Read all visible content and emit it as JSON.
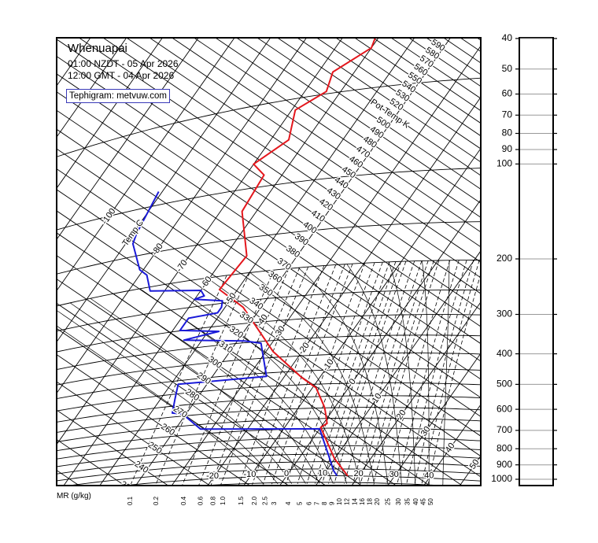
{
  "station": {
    "name": "Whenuapai",
    "local_time": "01:00 NZDT - 05 Apr 2026",
    "gmt_time": "12:00 GMT - 04 Apr 2026",
    "credit": "Tephigram: metvuw.com"
  },
  "chart_data": {
    "type": "line",
    "diagram": "tephigram",
    "pressure_axis": {
      "scale": "log",
      "range": [
        40,
        1000
      ],
      "ticks": [
        40,
        50,
        60,
        70,
        80,
        90,
        100,
        200,
        300,
        400,
        500,
        600,
        700,
        800,
        900,
        1000
      ]
    },
    "isotherm_labels": {
      "axis_label": "Temp C",
      "values": [
        -100,
        -80,
        -70,
        -60,
        -50,
        -40,
        -30,
        -20,
        -10,
        0,
        10,
        20,
        30,
        40,
        50
      ]
    },
    "surface_isotherm_labels": [
      -20,
      -10,
      0,
      10,
      20,
      30,
      40
    ],
    "potential_temperature_labels": {
      "axis_label": "Pot Temp K",
      "values": [
        230,
        240,
        250,
        260,
        270,
        280,
        290,
        300,
        310,
        320,
        330,
        340,
        350,
        360,
        370,
        380,
        390,
        400,
        410,
        420,
        430,
        440,
        450,
        460,
        470,
        480,
        490,
        500,
        520,
        530,
        540,
        550,
        560,
        570,
        580,
        590
      ]
    },
    "mixing_ratio": {
      "axis_label": "MR (g/kg)",
      "values": [
        "0.1",
        "0.2",
        "0.4",
        "0.6",
        "0.8",
        "1.0",
        "1.5",
        "2.0",
        "2.5",
        "3",
        "4",
        "5",
        "6",
        "7",
        "8",
        "9",
        "10",
        "12",
        "14",
        "16",
        "18",
        "20",
        "25",
        "30",
        "35",
        "40",
        "45",
        "50"
      ]
    },
    "series": [
      {
        "color": "#e4161c",
        "points_p_hPa_T_C": [
          [
            33,
            -61
          ],
          [
            36,
            -60
          ],
          [
            42,
            -66
          ],
          [
            49,
            -64
          ],
          [
            55,
            -69
          ],
          [
            70,
            -65
          ],
          [
            82,
            -70
          ],
          [
            91,
            -65
          ],
          [
            120,
            -64
          ],
          [
            174,
            -54
          ],
          [
            223,
            -55
          ],
          [
            263,
            -45
          ],
          [
            382,
            -28
          ],
          [
            422,
            -22
          ],
          [
            473,
            -15
          ],
          [
            514,
            -9
          ],
          [
            595,
            -3
          ],
          [
            613,
            -2
          ],
          [
            675,
            1
          ],
          [
            695,
            0
          ],
          [
            881,
            10
          ],
          [
            1000,
            17
          ]
        ]
      },
      {
        "color": "#1a1ad8",
        "points_p_hPa_T_C": [
          [
            89,
            -91
          ],
          [
            123,
            -89
          ],
          [
            134,
            -88
          ],
          [
            170,
            -81
          ],
          [
            180,
            -78
          ],
          [
            207,
            -74
          ],
          [
            220,
            -60
          ],
          [
            231,
            -58
          ],
          [
            235,
            -60
          ],
          [
            245,
            -52
          ],
          [
            258,
            -51
          ],
          [
            269,
            -51
          ],
          [
            273,
            -58
          ],
          [
            299,
            -58
          ],
          [
            313,
            -47
          ],
          [
            325,
            -55
          ],
          [
            345,
            -38
          ],
          [
            355,
            -33
          ],
          [
            462,
            -25
          ],
          [
            463,
            -48
          ],
          [
            520,
            -46
          ],
          [
            581,
            -44
          ],
          [
            590,
            -41
          ],
          [
            674,
            -33
          ],
          [
            703,
            0
          ],
          [
            866,
            8
          ],
          [
            962,
            12
          ],
          [
            1000,
            14
          ]
        ]
      }
    ]
  }
}
